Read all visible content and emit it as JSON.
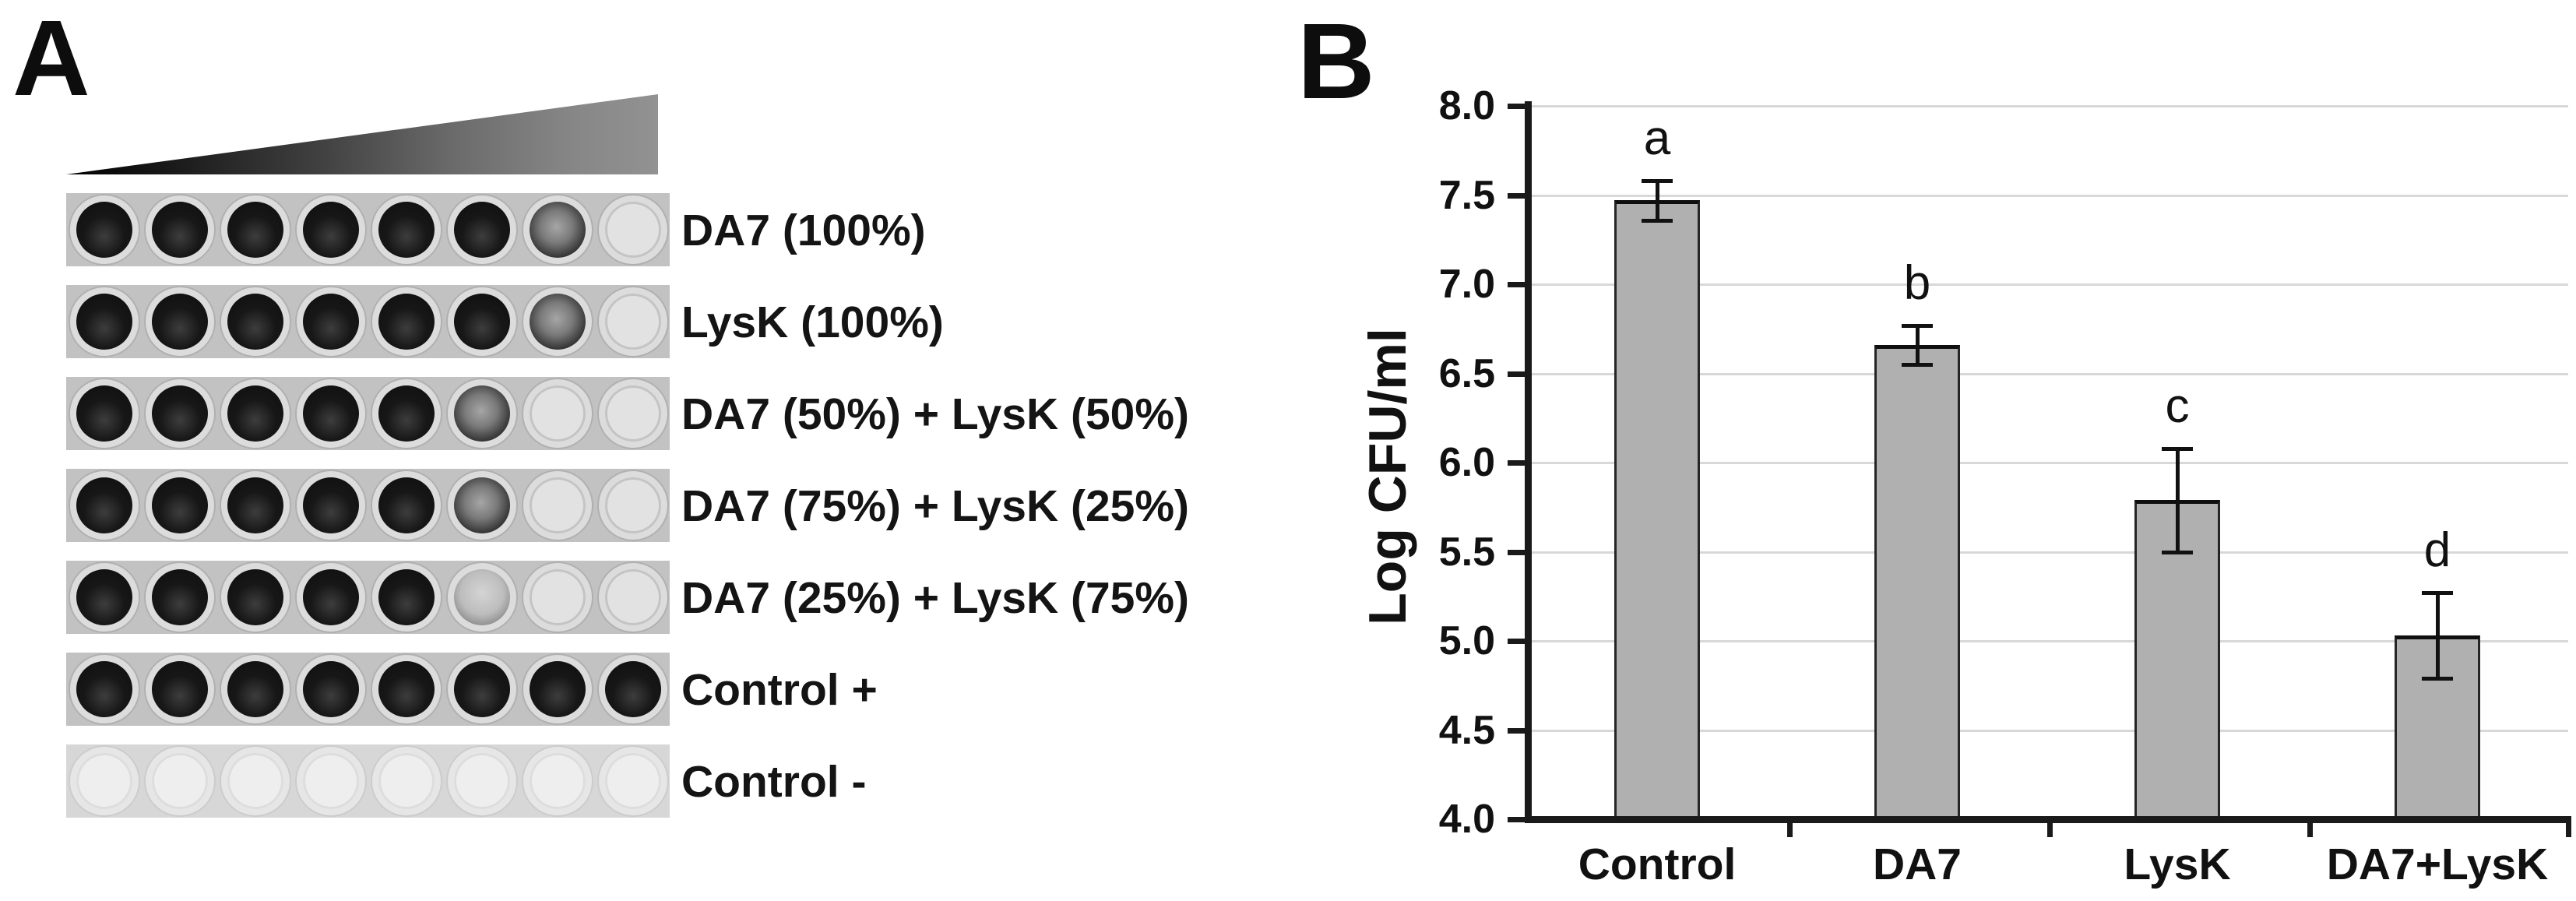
{
  "figure": {
    "panel_a": {
      "label": "A",
      "gradient_bar": "increasing-concentration-triangle",
      "rows": [
        {
          "label": "DA7 (100%)",
          "wells": [
            3,
            3,
            3,
            3,
            3,
            3,
            2,
            0
          ],
          "light": false
        },
        {
          "label": "LysK (100%)",
          "wells": [
            3,
            3,
            3,
            3,
            3,
            3,
            2,
            0
          ],
          "light": false
        },
        {
          "label": "DA7 (50%) + LysK (50%)",
          "wells": [
            3,
            3,
            3,
            3,
            3,
            2,
            0,
            0
          ],
          "light": false
        },
        {
          "label": "DA7 (75%) + LysK (25%)",
          "wells": [
            3,
            3,
            3,
            3,
            3,
            2,
            0,
            0
          ],
          "light": false
        },
        {
          "label": "DA7 (25%) + LysK (75%)",
          "wells": [
            3,
            3,
            3,
            3,
            3,
            1,
            0,
            0
          ],
          "light": false
        },
        {
          "label": "Control +",
          "wells": [
            3,
            3,
            3,
            3,
            3,
            3,
            3,
            3
          ],
          "light": false
        },
        {
          "label": "Control -",
          "wells": [
            0,
            0,
            0,
            0,
            0,
            0,
            0,
            0
          ],
          "light": true
        }
      ]
    },
    "panel_b": {
      "label": "B"
    }
  },
  "chart_data": {
    "type": "bar",
    "categories": [
      "Control",
      "DA7",
      "LysK",
      "DA7+LysK"
    ],
    "values": [
      7.47,
      6.66,
      5.79,
      5.03
    ],
    "error_low": [
      7.36,
      6.55,
      5.5,
      4.79
    ],
    "error_high": [
      7.58,
      6.77,
      6.08,
      5.27
    ],
    "sig_letters": [
      "a",
      "b",
      "c",
      "d"
    ],
    "title": "",
    "xlabel": "",
    "ylabel": "Log CFU/ml",
    "ylim": [
      4.0,
      8.0
    ],
    "ytick_step": 0.5,
    "ytick_labels": [
      "4.0",
      "4.5",
      "5.0",
      "5.5",
      "6.0",
      "6.5",
      "7.0",
      "7.5",
      "8.0"
    ],
    "grid": true,
    "legend_position": "none",
    "bar_color": "#b0b0b0",
    "bar_border_color": "#252525",
    "gridline_color": "#d8d8d8",
    "axis_color": "#1a1a1a"
  }
}
